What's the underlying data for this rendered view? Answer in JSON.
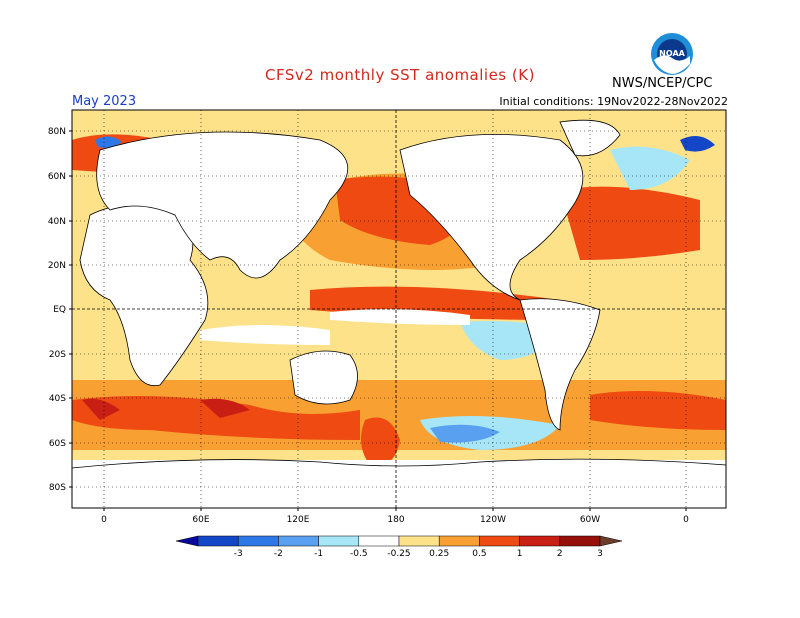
{
  "title": "CFSv2 monthly SST anomalies (K)",
  "agency": "NWS/NCEP/CPC",
  "valid_month": "May 2023",
  "initial_conditions": "Initial conditions: 19Nov2022-28Nov2022",
  "logo_text": "NOAA",
  "colors": {
    "title": "#d2281e",
    "month": "#1a3cc8",
    "land": "#ffffff",
    "coast": "#000000"
  },
  "lat_labels": [
    "80N",
    "60N",
    "40N",
    "20N",
    "EQ",
    "20S",
    "40S",
    "60S",
    "80S"
  ],
  "lon_labels": [
    "0",
    "60E",
    "120E",
    "180",
    "120W",
    "60W",
    "0"
  ],
  "colorbar": {
    "labels": [
      "-3",
      "-2",
      "-1",
      "-0.5",
      "-0.25",
      "0.25",
      "0.5",
      "1",
      "2",
      "3"
    ],
    "colors": [
      "#0a0a9a",
      "#1446c8",
      "#2d78e6",
      "#5aa0f0",
      "#a6e6f6",
      "#ffffff",
      "#fde28a",
      "#f8a032",
      "#ee4a12",
      "#c81e14",
      "#96100a",
      "#6e3c2a"
    ]
  }
}
